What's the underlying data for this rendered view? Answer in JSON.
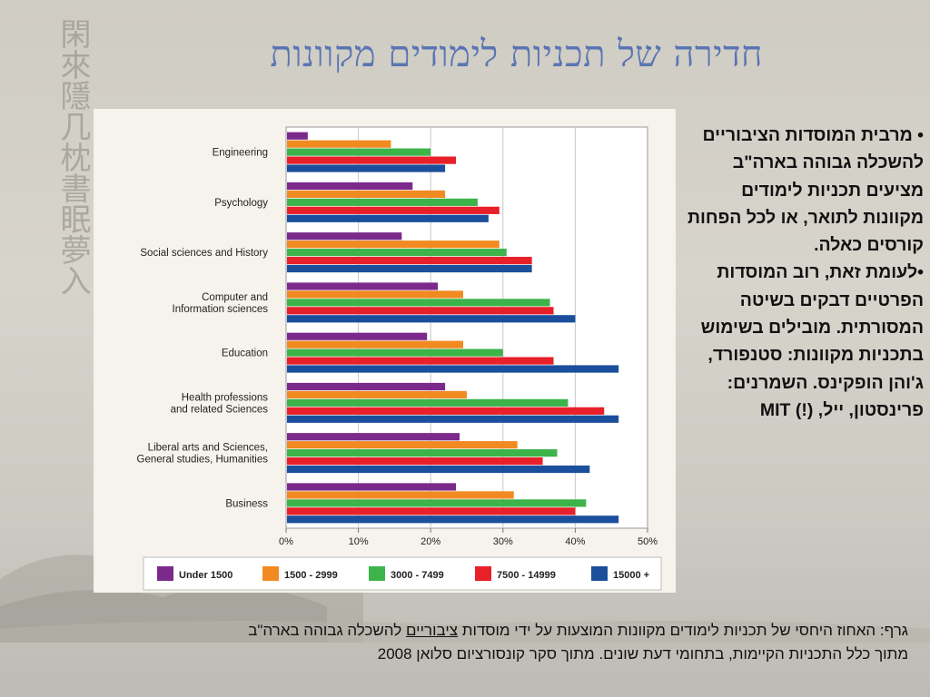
{
  "slide": {
    "title": "חדירה של תכניות לימודים מקוונות"
  },
  "bullets": [
    "• מרבית המוסדות הציבוריים להשכלה גבוהה בארה\"ב מציעים תכניות לימודים מקוונות לתואר, או לכל הפחות קורסים כאלה.",
    "•לעומת זאת, רוב המוסדות הפרטיים דבקים בשיטה המסורתית. מובילים בשימוש בתכניות מקוונות: סטנפורד, ג'והן הופקינס. השמרנים: פרינסטון, ייל, (!) MIT"
  ],
  "caption": {
    "line1_pre": "גרף: האחוז היחסי של תכניות לימודים מקוונות המוצעות על ידי מוסדות",
    "line1_underlined": "ציבוריים",
    "line1_post": "להשכלה גבוהה בארה\"ב",
    "line2": "מתוך כלל התכניות הקיימות, בתחומי דעת שונים. מתוך סקר קונסורציום סלואן 2008"
  },
  "colors": {
    "background": "#d2cfc7",
    "title": "#5a75b4",
    "chart_bg": "#f6f3ec"
  },
  "chart_data": {
    "type": "bar",
    "orientation": "horizontal",
    "categories": [
      "Engineering",
      "Psychology",
      "Social sciences and History",
      "Computer and\nInformation sciences",
      "Education",
      "Health professions\nand related Sciences",
      "Liberal arts and Sciences,\nGeneral studies, Humanities",
      "Business"
    ],
    "series": [
      {
        "name": "Under 1500",
        "color": "#7b2a8c",
        "values": [
          3,
          17.5,
          16,
          21,
          19.5,
          22,
          24,
          23.5
        ]
      },
      {
        "name": "1500 - 2999",
        "color": "#f28a22",
        "values": [
          14.5,
          22,
          29.5,
          24.5,
          24.5,
          25,
          32,
          31.5
        ]
      },
      {
        "name": "3000 - 7499",
        "color": "#3cb44a",
        "values": [
          20,
          26.5,
          30.5,
          36.5,
          30,
          39,
          37.5,
          41.5
        ]
      },
      {
        "name": "7500 - 14999",
        "color": "#e8202a",
        "values": [
          23.5,
          29.5,
          34,
          37,
          37,
          44,
          35.5,
          40
        ]
      },
      {
        "name": "15000 +",
        "color": "#1b4f9c",
        "values": [
          22,
          28,
          34,
          40,
          46,
          46,
          42,
          46
        ]
      }
    ],
    "x_ticks": [
      "0%",
      "10%",
      "20%",
      "30%",
      "40%",
      "50%"
    ],
    "xlim": [
      0,
      50
    ],
    "grid": true,
    "legend_position": "bottom"
  }
}
